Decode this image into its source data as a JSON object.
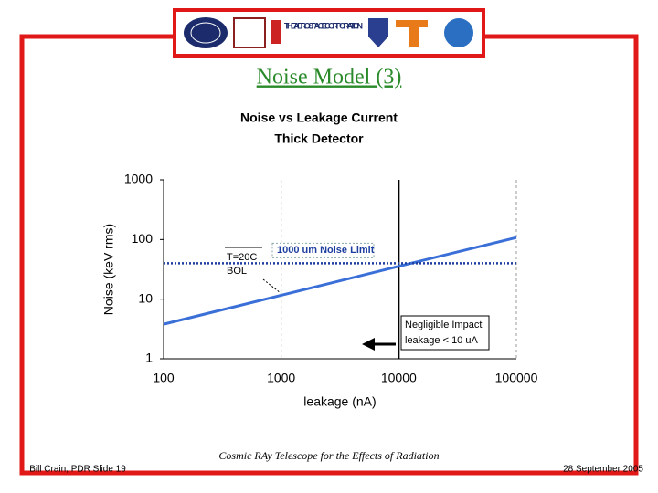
{
  "header": {
    "logo_text": "THE AEROSPACE CORPORATION",
    "title": "Noise Model (3)"
  },
  "chart_data": {
    "type": "line",
    "title": "Noise vs Leakage Current",
    "subtitle": "Thick Detector",
    "x_label": "leakage (nA)",
    "y_label": "Noise (keV rms)",
    "x": [
      100,
      1000,
      10000,
      100000
    ],
    "series": [
      {
        "color": "#3a6fd8",
        "style": "solid",
        "values": [
          3.8,
          11.6,
          35.5,
          108
        ]
      },
      {
        "name": "1000 um Noise Limit",
        "color": "#1f3fa0",
        "style": "dotted",
        "values": [
          40,
          40,
          40,
          40
        ]
      }
    ],
    "vline": {
      "x": 10000,
      "color": "#000000"
    },
    "annotations": [
      "T=20C",
      "BOL",
      "Negligible Impact",
      "leakage < 10 uA"
    ],
    "xlim": [
      100,
      100000
    ],
    "ylim": [
      1,
      1000
    ],
    "xscale": "log",
    "yscale": "log",
    "xticks": [
      100,
      1000,
      10000,
      100000
    ],
    "yticks": [
      1,
      10,
      100,
      1000
    ],
    "grid": true
  },
  "footer": {
    "left": "Bill Crain, PDR Slide 19",
    "center": "Cosmic RAy Telescope for the Effects of Radiation",
    "right": "28 September 2005"
  }
}
